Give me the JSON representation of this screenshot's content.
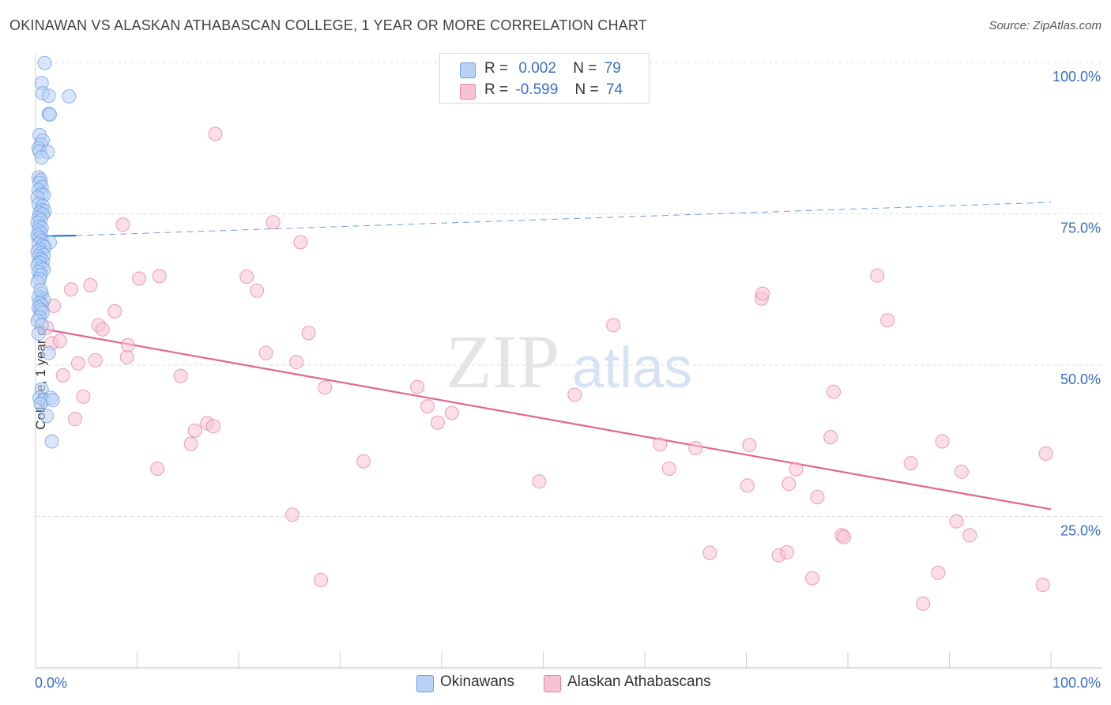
{
  "title": "OKINAWAN VS ALASKAN ATHABASCAN COLLEGE, 1 YEAR OR MORE CORRELATION CHART",
  "source": "Source: ZipAtlas.com",
  "watermark": {
    "zip": "ZIP",
    "atlas": "atlas"
  },
  "colors": {
    "blue": "#6a9ee6",
    "blue_fill": "#b9d1f5",
    "blue_line": "#2f6fd0",
    "pink": "#e67fa3",
    "pink_fill": "#f7c3d4",
    "pink_line": "#e06694",
    "axis_text": "#3a6fc4"
  },
  "legend": {
    "rows": [
      {
        "r_label": "R =",
        "r_value": "0.002",
        "n_label": "N =",
        "n_value": "79"
      },
      {
        "r_label": "R =",
        "r_value": "-0.599",
        "n_label": "N =",
        "n_value": "74"
      }
    ],
    "series_names": [
      "Okinawans",
      "Alaskan Athabascans"
    ]
  },
  "chart_data": {
    "type": "scatter",
    "title": "OKINAWAN VS ALASKAN ATHABASCAN COLLEGE, 1 YEAR OR MORE CORRELATION CHART",
    "xlabel": "",
    "ylabel": "College, 1 year or more",
    "xlim": [
      0,
      100
    ],
    "ylim": [
      0,
      100
    ],
    "x_tick_labels": [
      "0.0%",
      "100.0%"
    ],
    "y_tick_labels": [
      "100.0%",
      "75.0%",
      "50.0%",
      "25.0%"
    ],
    "y_tick_values": [
      100,
      75,
      50,
      25
    ],
    "grid": true,
    "legend_position": "bottom",
    "series": [
      {
        "name": "Okinawans",
        "r": 0.002,
        "n": 79,
        "trend": {
          "x": [
            0,
            4
          ],
          "y": [
            71.3,
            71.4
          ],
          "dashed_ext": {
            "x": [
              4,
              100
            ],
            "y": [
              71.4,
              76.9
            ]
          }
        },
        "points": [
          [
            0.9,
            99.9
          ],
          [
            0.6,
            96.6
          ],
          [
            0.7,
            94.9
          ],
          [
            1.3,
            94.5
          ],
          [
            3.3,
            94.4
          ],
          [
            1.3,
            91.5
          ],
          [
            1.4,
            91.4
          ],
          [
            0.4,
            88.0
          ],
          [
            0.7,
            87.1
          ],
          [
            0.5,
            86.4
          ],
          [
            0.3,
            85.8
          ],
          [
            0.4,
            85.3
          ],
          [
            1.2,
            85.2
          ],
          [
            0.6,
            84.3
          ],
          [
            0.3,
            81.0
          ],
          [
            0.5,
            80.6
          ],
          [
            0.4,
            80.1
          ],
          [
            0.6,
            79.4
          ],
          [
            0.3,
            78.9
          ],
          [
            0.6,
            78.3
          ],
          [
            0.8,
            78.1
          ],
          [
            0.2,
            77.7
          ],
          [
            0.3,
            76.6
          ],
          [
            0.7,
            76.3
          ],
          [
            0.6,
            75.6
          ],
          [
            0.9,
            75.4
          ],
          [
            0.4,
            75.1
          ],
          [
            0.7,
            74.9
          ],
          [
            0.3,
            74.3
          ],
          [
            0.5,
            73.9
          ],
          [
            0.2,
            73.5
          ],
          [
            0.4,
            72.9
          ],
          [
            0.6,
            72.6
          ],
          [
            0.3,
            72.2
          ],
          [
            0.5,
            71.8
          ],
          [
            0.2,
            71.4
          ],
          [
            0.4,
            71.0
          ],
          [
            0.6,
            70.6
          ],
          [
            1.4,
            70.3
          ],
          [
            0.3,
            70.0
          ],
          [
            0.7,
            69.8
          ],
          [
            0.9,
            69.5
          ],
          [
            0.4,
            69.1
          ],
          [
            0.2,
            68.8
          ],
          [
            0.6,
            68.5
          ],
          [
            0.8,
            68.2
          ],
          [
            0.3,
            67.9
          ],
          [
            0.5,
            67.5
          ],
          [
            0.7,
            67.2
          ],
          [
            0.4,
            66.9
          ],
          [
            0.2,
            66.5
          ],
          [
            0.6,
            66.1
          ],
          [
            0.8,
            65.8
          ],
          [
            0.3,
            65.4
          ],
          [
            0.5,
            64.9
          ],
          [
            0.4,
            64.2
          ],
          [
            0.2,
            63.7
          ],
          [
            0.6,
            61.8
          ],
          [
            0.3,
            61.2
          ],
          [
            0.8,
            60.8
          ],
          [
            0.4,
            60.3
          ],
          [
            0.6,
            59.9
          ],
          [
            0.3,
            59.5
          ],
          [
            0.5,
            59.1
          ],
          [
            0.7,
            58.7
          ],
          [
            0.4,
            57.9
          ],
          [
            0.2,
            57.3
          ],
          [
            0.6,
            56.6
          ],
          [
            1.3,
            52.0
          ],
          [
            0.6,
            46.0
          ],
          [
            0.4,
            44.6
          ],
          [
            0.8,
            44.2
          ],
          [
            1.5,
            44.6
          ],
          [
            1.7,
            44.2
          ],
          [
            0.5,
            43.6
          ],
          [
            1.1,
            41.6
          ],
          [
            1.6,
            37.4
          ],
          [
            0.3,
            55.2
          ],
          [
            0.5,
            62.4
          ]
        ]
      },
      {
        "name": "Alaskan Athabascans",
        "r": -0.599,
        "n": 74,
        "trend": {
          "x": [
            0,
            100
          ],
          "y": [
            56.2,
            26.2
          ]
        },
        "points": [
          [
            0.6,
            59.6
          ],
          [
            1.1,
            56.2
          ],
          [
            1.6,
            53.6
          ],
          [
            1.8,
            59.8
          ],
          [
            2.4,
            54.0
          ],
          [
            2.7,
            48.3
          ],
          [
            3.5,
            62.5
          ],
          [
            3.9,
            41.1
          ],
          [
            4.2,
            50.3
          ],
          [
            4.7,
            44.8
          ],
          [
            5.4,
            63.2
          ],
          [
            5.9,
            50.8
          ],
          [
            6.2,
            56.6
          ],
          [
            6.6,
            55.9
          ],
          [
            7.8,
            58.9
          ],
          [
            8.6,
            73.2
          ],
          [
            9.0,
            51.3
          ],
          [
            9.1,
            53.3
          ],
          [
            10.2,
            64.3
          ],
          [
            12.0,
            32.9
          ],
          [
            12.2,
            64.7
          ],
          [
            14.3,
            48.2
          ],
          [
            15.3,
            37.0
          ],
          [
            15.7,
            39.2
          ],
          [
            16.9,
            40.4
          ],
          [
            17.5,
            39.9
          ],
          [
            17.7,
            88.2
          ],
          [
            20.8,
            64.6
          ],
          [
            21.8,
            62.3
          ],
          [
            22.7,
            52.0
          ],
          [
            23.4,
            73.6
          ],
          [
            25.3,
            25.3
          ],
          [
            25.7,
            50.5
          ],
          [
            26.1,
            70.3
          ],
          [
            26.9,
            55.3
          ],
          [
            28.1,
            14.5
          ],
          [
            28.5,
            46.3
          ],
          [
            32.3,
            34.1
          ],
          [
            37.6,
            46.4
          ],
          [
            38.6,
            43.2
          ],
          [
            39.6,
            40.5
          ],
          [
            41.0,
            42.1
          ],
          [
            49.6,
            30.8
          ],
          [
            53.1,
            45.1
          ],
          [
            56.9,
            56.6
          ],
          [
            61.5,
            36.9
          ],
          [
            62.4,
            32.9
          ],
          [
            65.0,
            36.3
          ],
          [
            66.4,
            19.0
          ],
          [
            70.1,
            30.1
          ],
          [
            70.3,
            36.8
          ],
          [
            71.5,
            61.0
          ],
          [
            71.6,
            61.8
          ],
          [
            73.2,
            18.6
          ],
          [
            74.0,
            19.1
          ],
          [
            74.2,
            30.4
          ],
          [
            74.9,
            32.8
          ],
          [
            76.5,
            14.8
          ],
          [
            77.0,
            28.2
          ],
          [
            78.3,
            38.1
          ],
          [
            78.6,
            45.6
          ],
          [
            79.4,
            21.9
          ],
          [
            79.6,
            21.6
          ],
          [
            82.9,
            64.8
          ],
          [
            83.9,
            57.4
          ],
          [
            86.2,
            33.8
          ],
          [
            87.4,
            10.6
          ],
          [
            88.9,
            15.7
          ],
          [
            89.3,
            37.4
          ],
          [
            90.7,
            24.2
          ],
          [
            91.2,
            32.4
          ],
          [
            92.0,
            21.9
          ],
          [
            99.2,
            13.7
          ],
          [
            99.5,
            35.4
          ]
        ]
      }
    ]
  }
}
